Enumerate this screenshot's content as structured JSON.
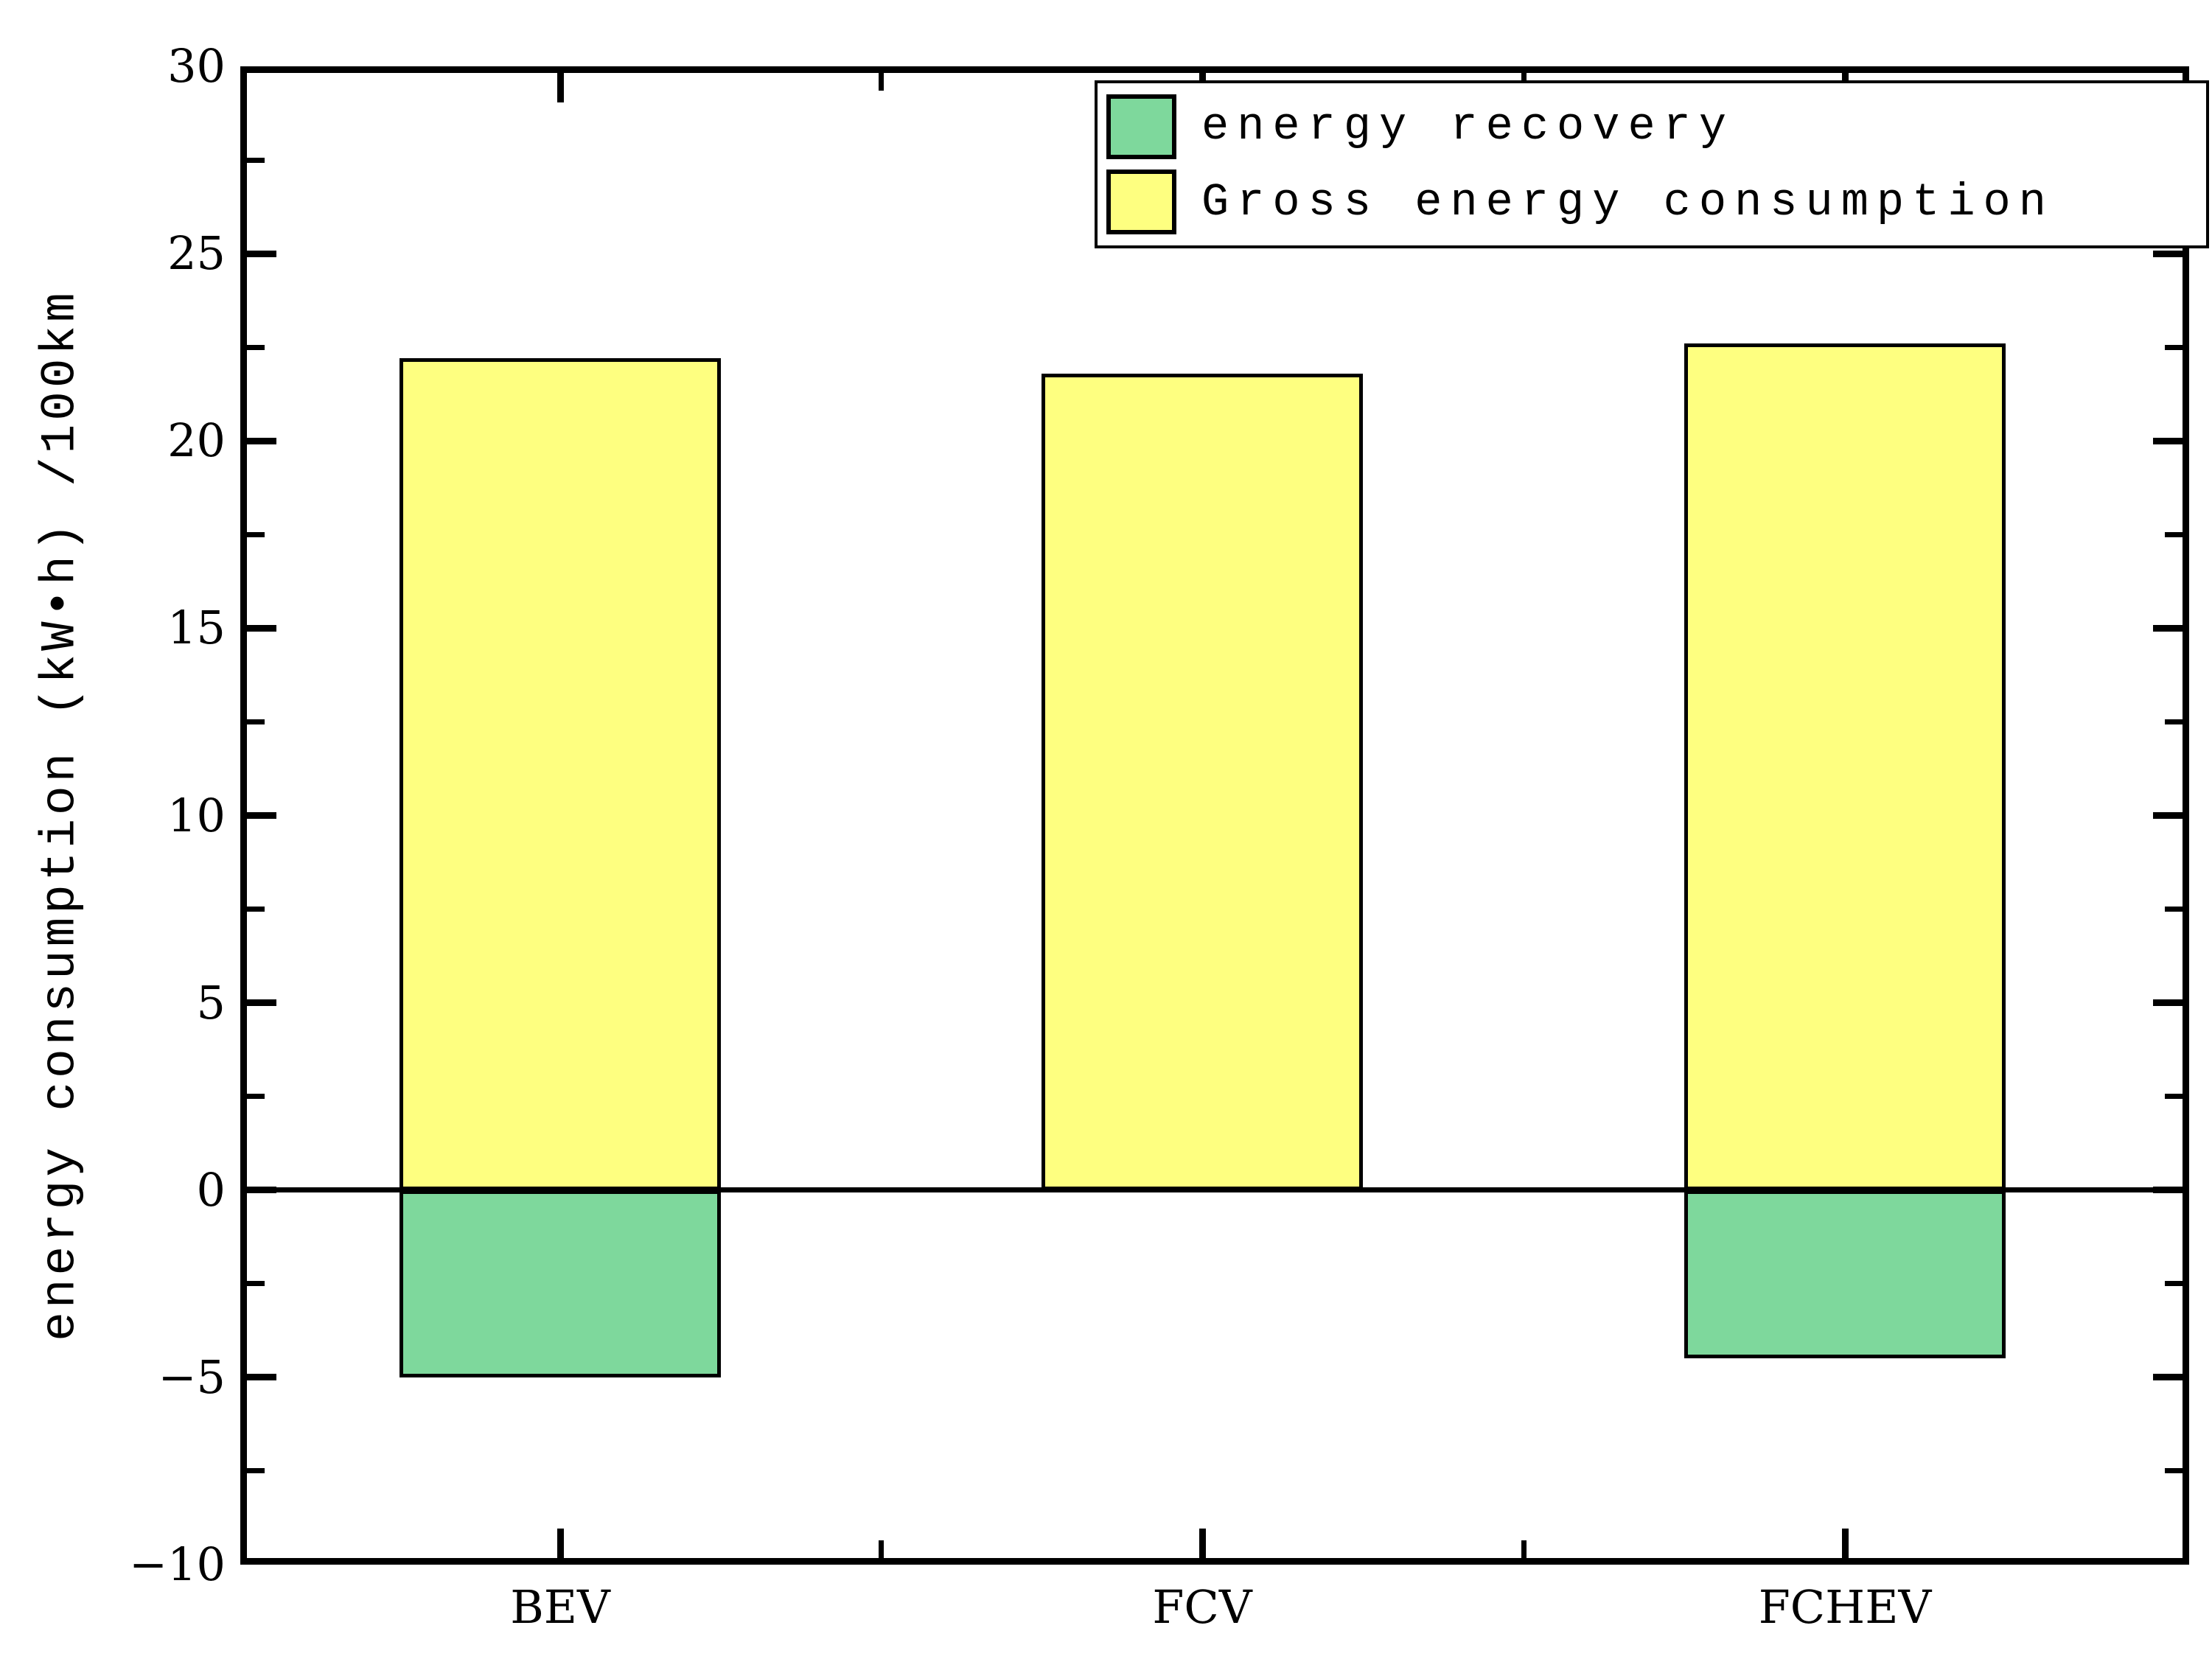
{
  "chart_data": {
    "type": "bar",
    "title": "",
    "categories": [
      "BEV",
      "FCV",
      "FCHEV"
    ],
    "series": [
      {
        "name": "energy recovery",
        "color": "#7ed89c",
        "values": [
          -5.0,
          0,
          -4.5
        ]
      },
      {
        "name": "Gross energy consumption",
        "color": "#feff80",
        "values": [
          22.2,
          21.8,
          22.6
        ]
      }
    ],
    "ylabel": "energy consumption (kW•h) /100km",
    "xlabel": "",
    "ylim": [
      -10,
      30
    ],
    "yticks": [
      {
        "value": 30,
        "label": "30"
      },
      {
        "value": 25,
        "label": "25"
      },
      {
        "value": 20,
        "label": "20"
      },
      {
        "value": 15,
        "label": "15"
      },
      {
        "value": 10,
        "label": "10"
      },
      {
        "value": 5,
        "label": "5"
      },
      {
        "value": 0,
        "label": "0"
      },
      {
        "value": -5,
        "label": "−5"
      },
      {
        "value": -10,
        "label": "−10"
      }
    ],
    "ytick_minor_step": 2.5,
    "grid": false,
    "zero_line": true,
    "legend_position": "top-right",
    "bar_edge_color": "#000000",
    "frame_color": "#000000",
    "background_color": "#ffffff"
  }
}
